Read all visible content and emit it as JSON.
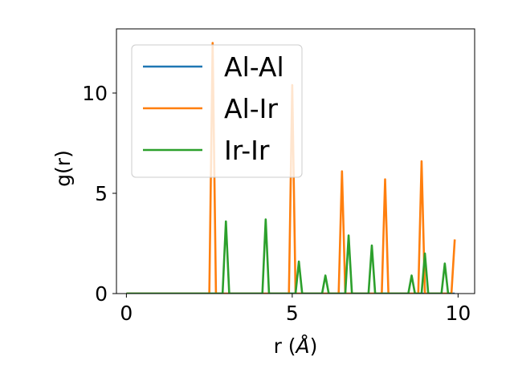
{
  "chart_data": {
    "type": "line",
    "xlabel_main": "r (",
    "xlabel_unit": "Å",
    "xlabel_close": ")",
    "ylabel": "g(r)",
    "xlim": [
      -0.3,
      10.5
    ],
    "ylim": [
      0,
      13.2
    ],
    "x_ticks": [
      0,
      5,
      10
    ],
    "y_ticks": [
      0,
      5,
      10
    ],
    "legend_position": "upper-left",
    "grid": false,
    "series": [
      {
        "name": "Al-Al",
        "color": "#1f77b4",
        "points": [
          [
            0,
            0
          ],
          [
            9.9,
            0
          ]
        ]
      },
      {
        "name": "Al-Ir",
        "color": "#ff7f0e",
        "points": [
          [
            0,
            0
          ],
          [
            2.5,
            0
          ],
          [
            2.6,
            12.5
          ],
          [
            2.7,
            0
          ],
          [
            4.9,
            0
          ],
          [
            5.0,
            10.4
          ],
          [
            5.1,
            0
          ],
          [
            6.4,
            0
          ],
          [
            6.5,
            6.1
          ],
          [
            6.6,
            0
          ],
          [
            7.7,
            0
          ],
          [
            7.8,
            5.7
          ],
          [
            7.9,
            0
          ],
          [
            8.8,
            0
          ],
          [
            8.9,
            6.6
          ],
          [
            9.0,
            0
          ],
          [
            9.8,
            0
          ],
          [
            9.9,
            2.7
          ]
        ]
      },
      {
        "name": "Ir-Ir",
        "color": "#2ca02c",
        "points": [
          [
            0,
            0
          ],
          [
            2.9,
            0
          ],
          [
            3.0,
            3.6
          ],
          [
            3.1,
            0
          ],
          [
            4.1,
            0
          ],
          [
            4.2,
            3.7
          ],
          [
            4.3,
            0
          ],
          [
            5.1,
            0
          ],
          [
            5.2,
            1.6
          ],
          [
            5.3,
            0
          ],
          [
            5.9,
            0
          ],
          [
            6.0,
            0.9
          ],
          [
            6.1,
            0
          ],
          [
            6.6,
            0
          ],
          [
            6.7,
            2.9
          ],
          [
            6.8,
            0
          ],
          [
            7.3,
            0
          ],
          [
            7.4,
            2.4
          ],
          [
            7.5,
            0
          ],
          [
            8.5,
            0
          ],
          [
            8.6,
            0.9
          ],
          [
            8.7,
            0
          ],
          [
            8.9,
            0
          ],
          [
            9.0,
            2.0
          ],
          [
            9.1,
            0
          ],
          [
            9.5,
            0
          ],
          [
            9.6,
            1.5
          ],
          [
            9.7,
            0
          ],
          [
            9.8,
            0
          ]
        ]
      }
    ]
  }
}
